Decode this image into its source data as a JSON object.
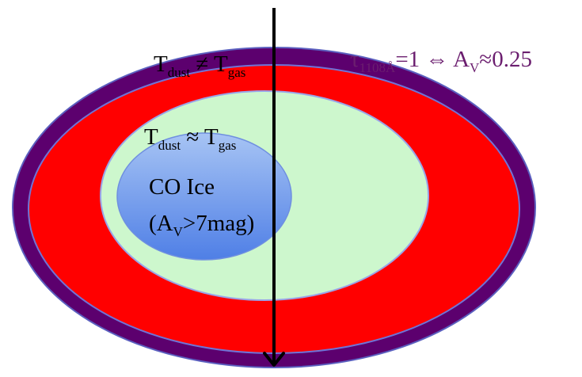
{
  "colors": {
    "outer_ring": "#5c006e",
    "outer_ring_edge": "#5b5fbf",
    "red_ring": "#ff0000",
    "red_ring_edge": "#6f73d6",
    "green_ring": "#cdf7cd",
    "green_ring_edge": "#9aa4e8",
    "core_top": "#a7c4f4",
    "core_bottom": "#4f7fe6",
    "core_edge": "#6f8fe0",
    "arrow": "#000000",
    "label_dark": "#000000",
    "label_purple": "#6b1e6f"
  },
  "labels": {
    "outer": {
      "t1": "T",
      "t1_sub": "dust",
      "rel": " ≠ ",
      "t2": "T",
      "t2_sub": "gas"
    },
    "inner": {
      "t1": "T",
      "t1_sub": "dust",
      "rel": " ≈ ",
      "t2": "T",
      "t2_sub": "gas"
    },
    "core": {
      "line1": "CO Ice",
      "line2_open": "(A",
      "line2_sub": "V",
      "line2_rest": ">7mag)"
    },
    "annotation": {
      "tau": "τ",
      "tau_sub": "1108Å",
      "eq": "=1 ⇔ A",
      "av_sub": "V",
      "value": "≈0.25"
    }
  },
  "icons": {
    "arrow": "down-arrow-icon"
  }
}
